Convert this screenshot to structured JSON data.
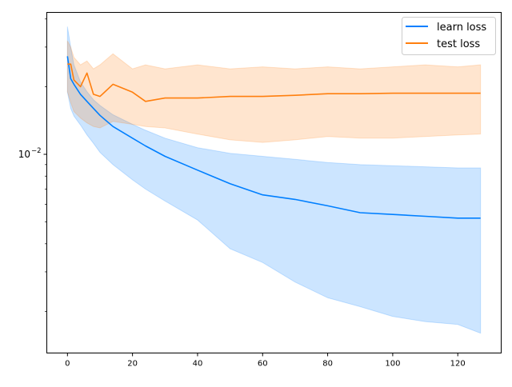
{
  "chart_data": {
    "type": "line",
    "title": "",
    "xlabel": "",
    "ylabel": "",
    "yscale": "log",
    "xlim": [
      -6.35,
      133.35
    ],
    "ylim": [
      0.001306,
      0.0428
    ],
    "x_ticks": [
      0,
      20,
      40,
      60,
      80,
      100,
      120
    ],
    "x_tick_labels": [
      "0",
      "20",
      "40",
      "60",
      "80",
      "100",
      "120"
    ],
    "y_major_ticks": [
      0.01
    ],
    "y_major_tick_label": {
      "base": "10",
      "exp": "−2"
    },
    "y_minor_ticks": [
      0.002,
      0.003,
      0.004,
      0.005,
      0.006,
      0.007,
      0.008,
      0.009,
      0.02,
      0.03,
      0.04
    ],
    "grid": false,
    "legend_position": "top-right",
    "x": [
      0,
      1,
      2,
      4,
      6,
      8,
      10,
      14,
      20,
      24,
      30,
      40,
      50,
      60,
      70,
      80,
      90,
      100,
      110,
      120,
      127
    ],
    "series": [
      {
        "name": "learn loss",
        "color": "#007fff",
        "values": [
          0.0273,
          0.0217,
          0.0205,
          0.0185,
          0.0172,
          0.016,
          0.0149,
          0.0133,
          0.0118,
          0.0109,
          0.0098,
          0.0085,
          0.0074,
          0.0066,
          0.0063,
          0.0059,
          0.0055,
          0.0054,
          0.0053,
          0.0052,
          0.0052
        ],
        "upper": [
          0.037,
          0.03,
          0.025,
          0.021,
          0.019,
          0.0175,
          0.0165,
          0.015,
          0.0136,
          0.0128,
          0.0118,
          0.0107,
          0.0101,
          0.0098,
          0.0095,
          0.0092,
          0.009,
          0.0089,
          0.0088,
          0.0087,
          0.0087
        ],
        "lower": [
          0.0189,
          0.016,
          0.0148,
          0.0135,
          0.0122,
          0.0112,
          0.0102,
          0.009,
          0.0077,
          0.007,
          0.0062,
          0.0051,
          0.0038,
          0.0033,
          0.0027,
          0.0023,
          0.0021,
          0.0019,
          0.0018,
          0.00175,
          0.0016
        ]
      },
      {
        "name": "test loss",
        "color": "#ff7f0e",
        "values": [
          0.0252,
          0.0252,
          0.0214,
          0.02,
          0.023,
          0.0185,
          0.0181,
          0.0205,
          0.0189,
          0.0172,
          0.0178,
          0.0178,
          0.0181,
          0.0181,
          0.0183,
          0.0186,
          0.0186,
          0.0187,
          0.0187,
          0.0187,
          0.0187
        ],
        "upper": [
          0.032,
          0.03,
          0.027,
          0.025,
          0.026,
          0.024,
          0.025,
          0.028,
          0.024,
          0.025,
          0.024,
          0.025,
          0.024,
          0.0245,
          0.024,
          0.0245,
          0.024,
          0.0245,
          0.025,
          0.0245,
          0.025
        ],
        "lower": [
          0.019,
          0.017,
          0.0155,
          0.0145,
          0.0138,
          0.0133,
          0.0131,
          0.014,
          0.0136,
          0.0133,
          0.0131,
          0.0123,
          0.0116,
          0.0113,
          0.0116,
          0.012,
          0.0118,
          0.0118,
          0.012,
          0.0122,
          0.0123
        ]
      }
    ]
  }
}
